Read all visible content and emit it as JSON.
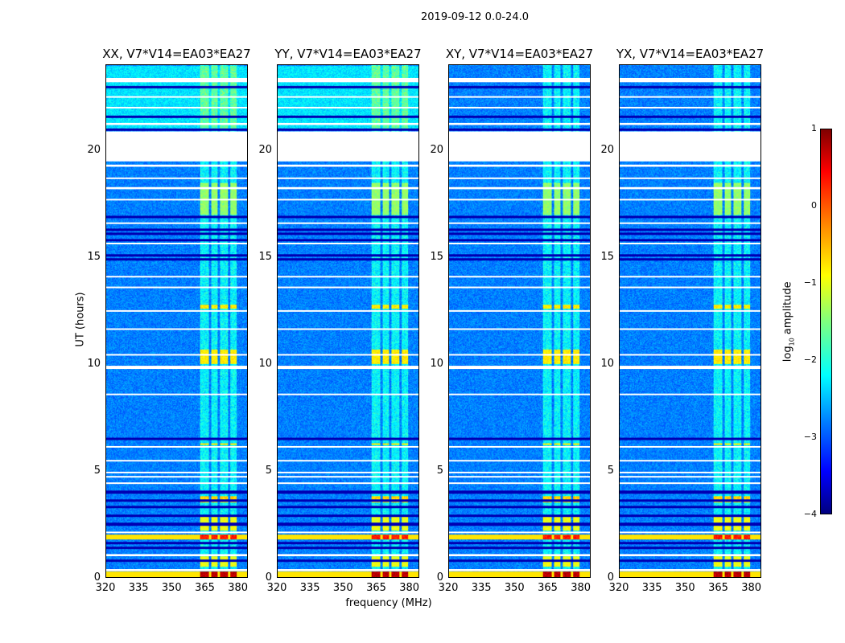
{
  "suptitle": "2019-09-12 0.0-24.0",
  "chart_data": {
    "type": "heatmap",
    "title": "2019-09-12 0.0-24.0",
    "xlabel": "frequency (MHz)",
    "ylabel": "UT (hours)",
    "xlim": [
      320,
      384.5
    ],
    "ylim": [
      0,
      24
    ],
    "xticks": [
      "320",
      "335",
      "350",
      "365",
      "380"
    ],
    "yticks": [
      "0",
      "5",
      "10",
      "15",
      "20"
    ],
    "panels": [
      {
        "title": "XX, V7*V14=EA03*EA27"
      },
      {
        "title": "YY, V7*V14=EA03*EA27"
      },
      {
        "title": "XY, V7*V14=EA03*EA27"
      },
      {
        "title": "YX, V7*V14=EA03*EA27"
      }
    ],
    "flagged_time_ranges_hours": [
      [
        19.5,
        20.9
      ],
      [
        0.35,
        0.45
      ],
      [
        1.05,
        1.15
      ],
      [
        2.15,
        2.2
      ],
      [
        4.45,
        4.5
      ],
      [
        4.75,
        4.8
      ],
      [
        4.95,
        5.0
      ],
      [
        5.5,
        5.55
      ],
      [
        6.15,
        6.2
      ],
      [
        8.6,
        8.65
      ],
      [
        9.8,
        9.95
      ],
      [
        10.45,
        10.5
      ],
      [
        11.65,
        11.7
      ],
      [
        12.5,
        12.55
      ],
      [
        13.6,
        13.65
      ],
      [
        14.1,
        14.15
      ],
      [
        15.65,
        15.7
      ],
      [
        16.6,
        16.65
      ],
      [
        17.7,
        17.75
      ],
      [
        18.2,
        18.3
      ],
      [
        18.7,
        18.75
      ],
      [
        19.25,
        19.35
      ],
      [
        21.2,
        21.3
      ],
      [
        22.0,
        22.05
      ],
      [
        22.5,
        22.55
      ],
      [
        23.2,
        23.4
      ]
    ],
    "dark_time_rows_hours": [
      0.8,
      1.4,
      1.6,
      2.5,
      2.9,
      3.3,
      3.6,
      4.0,
      6.5,
      14.9,
      15.1,
      15.8,
      16.1,
      16.3,
      16.9,
      21.0,
      21.6,
      23.0
    ],
    "rfi_channels_mhz": [
      [
        363,
        367
      ],
      [
        368,
        371
      ],
      [
        372,
        375.5
      ],
      [
        376.5,
        379.5
      ]
    ],
    "rfi_bright_times_hours": [
      [
        0,
        0.3,
        1.0
      ],
      [
        0.5,
        1.0,
        0.45
      ],
      [
        1.8,
        2.0,
        0.85
      ],
      [
        2.2,
        2.9,
        0.45
      ],
      [
        3.5,
        3.8,
        0.55
      ],
      [
        6.2,
        6.3,
        0.5
      ],
      [
        10.0,
        10.7,
        0.5
      ],
      [
        12.6,
        12.8,
        0.5
      ],
      [
        17.0,
        18.5,
        0.3
      ]
    ],
    "colorbar": {
      "label": "log10 amplitude",
      "range": [
        -4,
        1
      ],
      "ticks": [
        "1",
        "0",
        "−1",
        "−2",
        "−3",
        "−4"
      ],
      "colormap": "jet"
    }
  }
}
